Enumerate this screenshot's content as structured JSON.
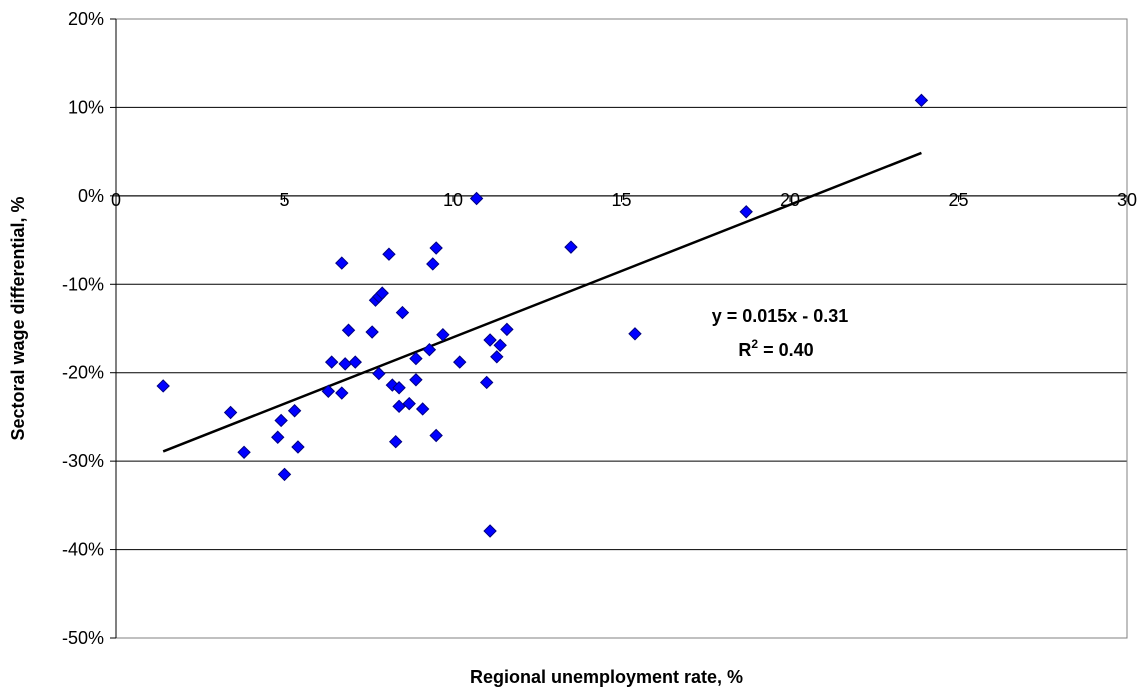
{
  "chart_data": {
    "type": "scatter",
    "xlabel": "Regional unemployment rate, %",
    "ylabel": "Sectoral wage differential, %",
    "xlim": [
      0,
      30
    ],
    "ylim": [
      -0.5,
      0.2
    ],
    "x_ticks": [
      0,
      5,
      10,
      15,
      20,
      25,
      30
    ],
    "x_tick_labels": [
      "0",
      "5",
      "10",
      "15",
      "20",
      "25",
      "30"
    ],
    "y_ticks": [
      0.2,
      0.1,
      0,
      -0.1,
      -0.2,
      -0.3,
      -0.4,
      -0.5
    ],
    "y_tick_labels": [
      "20%",
      "10%",
      "0%",
      "-10%",
      "-20%",
      "-30%",
      "-40%",
      "-50%"
    ],
    "grid": "horizontal",
    "marker_color": "#0000ff",
    "marker": "diamond",
    "series": [
      {
        "points": [
          [
            1.4,
            -0.215
          ],
          [
            3.4,
            -0.245
          ],
          [
            3.8,
            -0.29
          ],
          [
            4.8,
            -0.273
          ],
          [
            4.9,
            -0.254
          ],
          [
            5.0,
            -0.315
          ],
          [
            5.3,
            -0.243
          ],
          [
            5.4,
            -0.284
          ],
          [
            6.3,
            -0.221
          ],
          [
            6.4,
            -0.188
          ],
          [
            6.7,
            -0.076
          ],
          [
            6.7,
            -0.223
          ],
          [
            6.8,
            -0.19
          ],
          [
            6.9,
            -0.152
          ],
          [
            7.1,
            -0.188
          ],
          [
            7.6,
            -0.154
          ],
          [
            7.7,
            -0.118
          ],
          [
            7.8,
            -0.114
          ],
          [
            7.8,
            -0.201
          ],
          [
            7.9,
            -0.11
          ],
          [
            8.1,
            -0.066
          ],
          [
            8.2,
            -0.214
          ],
          [
            8.3,
            -0.278
          ],
          [
            8.4,
            -0.217
          ],
          [
            8.4,
            -0.238
          ],
          [
            8.5,
            -0.132
          ],
          [
            8.7,
            -0.235
          ],
          [
            8.9,
            -0.184
          ],
          [
            8.9,
            -0.208
          ],
          [
            9.1,
            -0.241
          ],
          [
            9.3,
            -0.174
          ],
          [
            9.4,
            -0.077
          ],
          [
            9.5,
            -0.059
          ],
          [
            9.5,
            -0.271
          ],
          [
            9.7,
            -0.157
          ],
          [
            10.2,
            -0.188
          ],
          [
            10.7,
            -0.003
          ],
          [
            11.0,
            -0.211
          ],
          [
            11.1,
            -0.163
          ],
          [
            11.1,
            -0.379
          ],
          [
            11.3,
            -0.182
          ],
          [
            11.4,
            -0.169
          ],
          [
            11.6,
            -0.151
          ],
          [
            13.5,
            -0.058
          ],
          [
            15.4,
            -0.156
          ],
          [
            18.7,
            -0.018
          ],
          [
            23.9,
            0.108
          ]
        ]
      }
    ],
    "trendline": {
      "slope": 0.015,
      "intercept": -0.31,
      "x_range": [
        1.4,
        23.9
      ]
    },
    "annotation": {
      "equation": "y = 0.015x - 0.31",
      "r2_prefix": "R",
      "r2_sup": "2",
      "r2_suffix": " = 0.40"
    }
  }
}
